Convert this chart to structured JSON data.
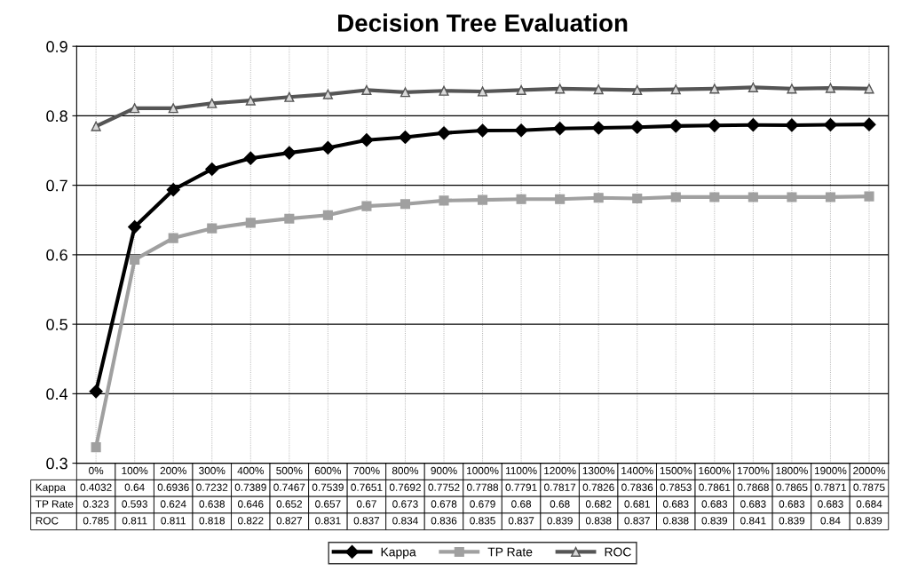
{
  "chart_data": {
    "type": "line",
    "title": "Decision Tree Evaluation",
    "categories": [
      "0%",
      "100%",
      "200%",
      "300%",
      "400%",
      "500%",
      "600%",
      "700%",
      "800%",
      "900%",
      "1000%",
      "1100%",
      "1200%",
      "1300%",
      "1400%",
      "1500%",
      "1600%",
      "1700%",
      "1800%",
      "1900%",
      "2000%"
    ],
    "series": [
      {
        "name": "Kappa",
        "color": "#000000",
        "marker": "diamond",
        "values": [
          0.4032,
          0.64,
          0.6936,
          0.7232,
          0.7389,
          0.7467,
          0.7539,
          0.7651,
          0.7692,
          0.7752,
          0.7788,
          0.7791,
          0.7817,
          0.7826,
          0.7836,
          0.7853,
          0.7861,
          0.7868,
          0.7865,
          0.7871,
          0.7875
        ]
      },
      {
        "name": "TP Rate",
        "color": "#a0a0a0",
        "marker": "square",
        "values": [
          0.323,
          0.593,
          0.624,
          0.638,
          0.646,
          0.652,
          0.657,
          0.67,
          0.673,
          0.678,
          0.679,
          0.68,
          0.68,
          0.682,
          0.681,
          0.683,
          0.683,
          0.683,
          0.683,
          0.683,
          0.684
        ]
      },
      {
        "name": "ROC",
        "color": "#555555",
        "marker": "triangle",
        "values": [
          0.785,
          0.811,
          0.811,
          0.818,
          0.822,
          0.827,
          0.831,
          0.837,
          0.834,
          0.836,
          0.835,
          0.837,
          0.839,
          0.838,
          0.837,
          0.838,
          0.839,
          0.841,
          0.839,
          0.84,
          0.839
        ]
      }
    ],
    "ylim": [
      0.3,
      0.9
    ],
    "yticks": [
      0.3,
      0.4,
      0.5,
      0.6,
      0.7,
      0.8,
      0.9
    ],
    "grid": true,
    "legend": "bottom",
    "data_labels": true,
    "line_style": "solid"
  }
}
